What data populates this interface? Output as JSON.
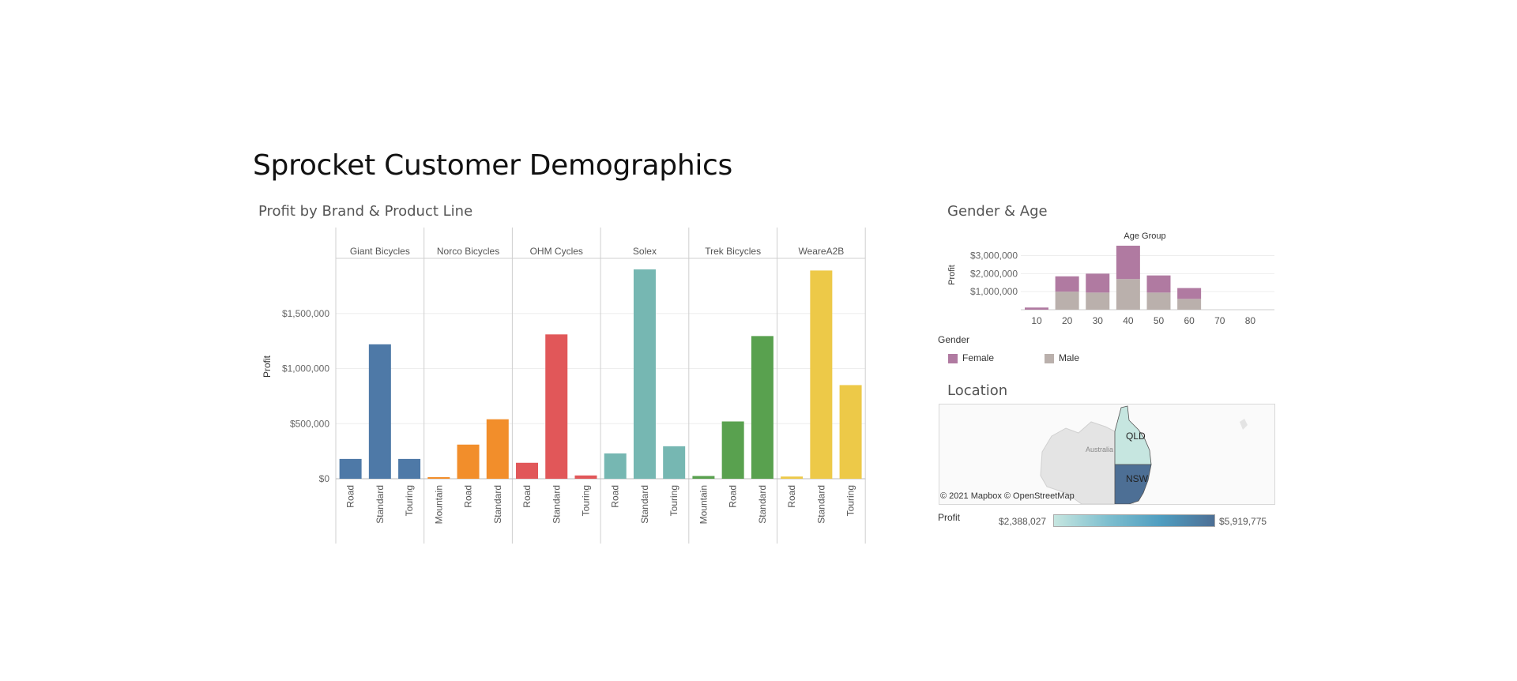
{
  "dashboard": {
    "title": "Sprocket Customer Demographics"
  },
  "brand_chart": {
    "title": "Profit by Brand & Product Line",
    "ylabel": "Profit"
  },
  "gender_age": {
    "title": "Gender & Age",
    "legend_title": "Gender",
    "legend": [
      {
        "label": "Female",
        "color": "#b07aa1"
      },
      {
        "label": "Male",
        "color": "#bab0ac"
      }
    ]
  },
  "location": {
    "title": "Location",
    "attribution": "© 2021 Mapbox  © OpenStreetMap",
    "map_labels": {
      "qld": "QLD",
      "nsw": "NSW",
      "australia": "Australia"
    },
    "profit_label": "Profit",
    "profit_min": "$2,388,027",
    "profit_max": "$5,919,775"
  },
  "chart_data": [
    {
      "type": "bar",
      "title": "Profit by Brand & Product Line",
      "ylabel": "Profit",
      "ylim": [
        0,
        2000000
      ],
      "ytick_values": [
        0,
        500000,
        1000000,
        1500000
      ],
      "ytick_labels": [
        "$0",
        "$500,000",
        "$1,000,000",
        "$1,500,000"
      ],
      "panels": [
        {
          "brand": "Giant Bicycles",
          "color": "#4e79a7",
          "categories": [
            "Road",
            "Standard",
            "Touring"
          ],
          "values": [
            180000,
            1220000,
            180000
          ]
        },
        {
          "brand": "Norco Bicycles",
          "color": "#f28e2b",
          "categories": [
            "Mountain",
            "Road",
            "Standard"
          ],
          "values": [
            15000,
            310000,
            540000
          ]
        },
        {
          "brand": "OHM Cycles",
          "color": "#e15759",
          "categories": [
            "Road",
            "Standard",
            "Touring"
          ],
          "values": [
            145000,
            1310000,
            30000
          ]
        },
        {
          "brand": "Solex",
          "color": "#76b7b2",
          "categories": [
            "Road",
            "Standard",
            "Touring"
          ],
          "values": [
            230000,
            1900000,
            295000
          ]
        },
        {
          "brand": "Trek Bicycles",
          "color": "#59a14f",
          "categories": [
            "Mountain",
            "Road",
            "Standard"
          ],
          "values": [
            25000,
            520000,
            1295000
          ]
        },
        {
          "brand": "WeareA2B",
          "color": "#edc948",
          "categories": [
            "Road",
            "Standard",
            "Touring"
          ],
          "values": [
            20000,
            1890000,
            850000
          ]
        }
      ]
    },
    {
      "type": "bar",
      "stacked": true,
      "title": "Age Group",
      "ylabel": "Profit",
      "categories": [
        10,
        20,
        30,
        40,
        50,
        60,
        70,
        80
      ],
      "ylim": [
        0,
        3500000
      ],
      "ytick_values": [
        1000000,
        2000000,
        3000000
      ],
      "ytick_labels": [
        "$1,000,000",
        "$2,000,000",
        "$3,000,000"
      ],
      "series": [
        {
          "name": "Male",
          "color": "#bab0ac",
          "values": [
            0,
            1000000,
            950000,
            1700000,
            950000,
            600000,
            0,
            0
          ]
        },
        {
          "name": "Female",
          "color": "#b07aa1",
          "values": [
            120000,
            850000,
            1050000,
            1850000,
            950000,
            600000,
            0,
            0
          ]
        }
      ]
    },
    {
      "type": "heatmap",
      "title": "Location",
      "categories": [
        "QLD",
        "NSW"
      ],
      "values": [
        2388027,
        5919775
      ],
      "legend_label": "Profit",
      "color_range": [
        "#c6e6e0",
        "#4d6f95"
      ]
    }
  ]
}
